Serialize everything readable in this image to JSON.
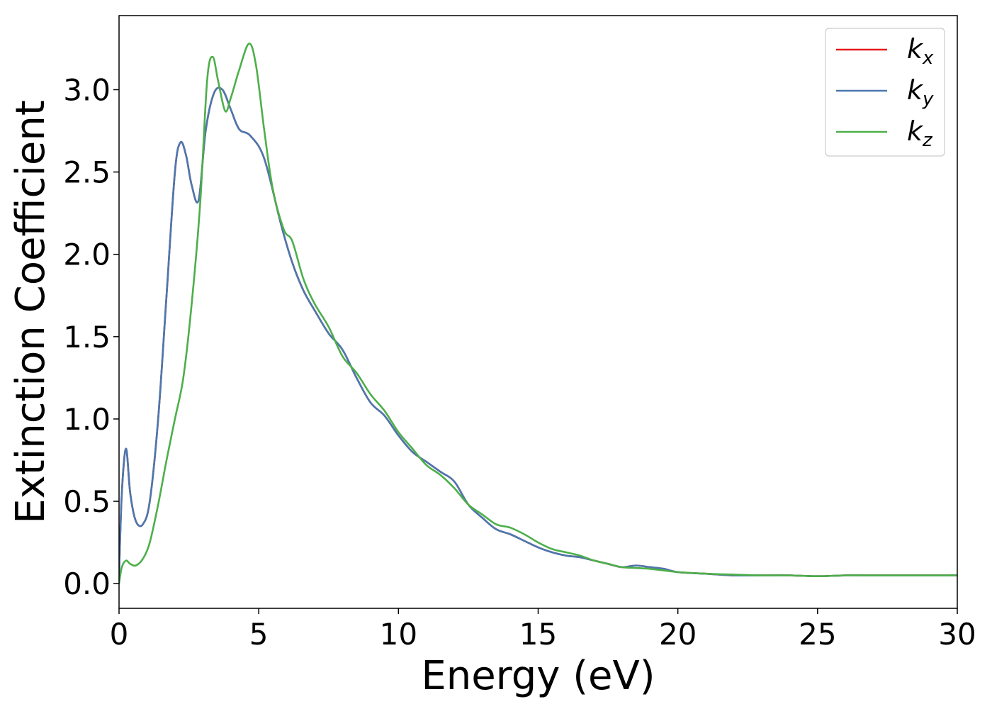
{
  "chart_data": {
    "type": "line",
    "xlabel": "Energy (eV)",
    "ylabel": "Extinction Coefficient",
    "xlim": [
      0,
      30
    ],
    "ylim": [
      -0.15,
      3.45
    ],
    "xticks": [
      0,
      5,
      10,
      15,
      20,
      25,
      30
    ],
    "xtick_labels": [
      "0",
      "5",
      "10",
      "15",
      "20",
      "25",
      "30"
    ],
    "yticks": [
      0.0,
      0.5,
      1.0,
      1.5,
      2.0,
      2.5,
      3.0
    ],
    "ytick_labels": [
      "0.0",
      "0.5",
      "1.0",
      "1.5",
      "2.0",
      "2.5",
      "3.0"
    ],
    "grid": false,
    "legend_position": "top-right",
    "series": [
      {
        "name": "k",
        "sub": "x",
        "color": "#e41a1c",
        "x": [
          0,
          0.1,
          0.25,
          0.4,
          0.6,
          0.85,
          1.1,
          1.4,
          1.7,
          2.0,
          2.2,
          2.4,
          2.6,
          2.85,
          3.1,
          3.4,
          3.7,
          4.0,
          4.3,
          4.7,
          5.2,
          5.8,
          6.2,
          6.6,
          7.0,
          7.5,
          8.0,
          8.5,
          9.0,
          9.5,
          10.0,
          10.5,
          11.0,
          11.5,
          12.0,
          12.5,
          13.0,
          13.5,
          14.0,
          14.5,
          15.0,
          15.5,
          16.0,
          16.5,
          17.0,
          17.5,
          18.0,
          18.5,
          19.0,
          19.5,
          20.0,
          21.0,
          22.0,
          23.0,
          24.0,
          25.0,
          26.0,
          27.0,
          28.0,
          29.0,
          30.0
        ],
        "y": [
          0.05,
          0.55,
          0.82,
          0.55,
          0.38,
          0.36,
          0.5,
          1.0,
          1.75,
          2.5,
          2.68,
          2.6,
          2.42,
          2.33,
          2.75,
          2.98,
          3.0,
          2.88,
          2.76,
          2.72,
          2.58,
          2.18,
          1.95,
          1.78,
          1.66,
          1.52,
          1.42,
          1.25,
          1.1,
          1.02,
          0.9,
          0.8,
          0.74,
          0.68,
          0.62,
          0.48,
          0.4,
          0.33,
          0.3,
          0.26,
          0.22,
          0.19,
          0.17,
          0.16,
          0.14,
          0.12,
          0.1,
          0.11,
          0.1,
          0.09,
          0.07,
          0.06,
          0.05,
          0.05,
          0.05,
          0.045,
          0.05,
          0.05,
          0.05,
          0.05,
          0.05
        ]
      },
      {
        "name": "k",
        "sub": "y",
        "color": "#4a78b0",
        "x": [
          0,
          0.1,
          0.25,
          0.4,
          0.6,
          0.85,
          1.1,
          1.4,
          1.7,
          2.0,
          2.2,
          2.4,
          2.6,
          2.85,
          3.1,
          3.4,
          3.7,
          4.0,
          4.3,
          4.7,
          5.2,
          5.8,
          6.2,
          6.6,
          7.0,
          7.5,
          8.0,
          8.5,
          9.0,
          9.5,
          10.0,
          10.5,
          11.0,
          11.5,
          12.0,
          12.5,
          13.0,
          13.5,
          14.0,
          14.5,
          15.0,
          15.5,
          16.0,
          16.5,
          17.0,
          17.5,
          18.0,
          18.5,
          19.0,
          19.5,
          20.0,
          21.0,
          22.0,
          23.0,
          24.0,
          25.0,
          26.0,
          27.0,
          28.0,
          29.0,
          30.0
        ],
        "y": [
          0.05,
          0.55,
          0.82,
          0.55,
          0.38,
          0.36,
          0.5,
          1.0,
          1.75,
          2.5,
          2.68,
          2.6,
          2.42,
          2.33,
          2.75,
          2.98,
          3.0,
          2.88,
          2.76,
          2.72,
          2.58,
          2.18,
          1.95,
          1.78,
          1.66,
          1.52,
          1.42,
          1.25,
          1.1,
          1.02,
          0.9,
          0.8,
          0.74,
          0.68,
          0.62,
          0.48,
          0.4,
          0.33,
          0.3,
          0.26,
          0.22,
          0.19,
          0.17,
          0.16,
          0.14,
          0.12,
          0.1,
          0.11,
          0.1,
          0.09,
          0.07,
          0.06,
          0.05,
          0.05,
          0.05,
          0.045,
          0.05,
          0.05,
          0.05,
          0.05,
          0.05
        ]
      },
      {
        "name": "k",
        "sub": "z",
        "color": "#4daf4a",
        "x": [
          0,
          0.1,
          0.25,
          0.4,
          0.6,
          0.85,
          1.1,
          1.4,
          1.7,
          2.0,
          2.3,
          2.6,
          2.9,
          3.15,
          3.35,
          3.55,
          3.8,
          4.0,
          4.3,
          4.65,
          4.9,
          5.2,
          5.5,
          5.9,
          6.2,
          6.6,
          7.0,
          7.5,
          8.0,
          8.5,
          9.0,
          9.5,
          10.0,
          10.5,
          11.0,
          11.5,
          12.0,
          12.5,
          13.0,
          13.5,
          14.0,
          14.5,
          15.0,
          15.5,
          16.0,
          16.5,
          17.0,
          17.5,
          18.0,
          18.5,
          19.0,
          19.5,
          20.0,
          21.0,
          22.0,
          23.0,
          24.0,
          25.0,
          26.0,
          27.0,
          28.0,
          29.0,
          30.0
        ],
        "y": [
          0.0,
          0.1,
          0.14,
          0.12,
          0.11,
          0.15,
          0.25,
          0.48,
          0.75,
          1.0,
          1.25,
          1.7,
          2.3,
          3.05,
          3.2,
          3.05,
          2.87,
          2.95,
          3.12,
          3.28,
          3.15,
          2.75,
          2.4,
          2.15,
          2.08,
          1.85,
          1.7,
          1.56,
          1.38,
          1.28,
          1.15,
          1.05,
          0.92,
          0.82,
          0.72,
          0.66,
          0.58,
          0.48,
          0.42,
          0.36,
          0.34,
          0.3,
          0.25,
          0.21,
          0.19,
          0.17,
          0.14,
          0.12,
          0.1,
          0.095,
          0.09,
          0.08,
          0.07,
          0.06,
          0.055,
          0.05,
          0.05,
          0.045,
          0.05,
          0.05,
          0.05,
          0.05,
          0.05
        ]
      }
    ]
  }
}
